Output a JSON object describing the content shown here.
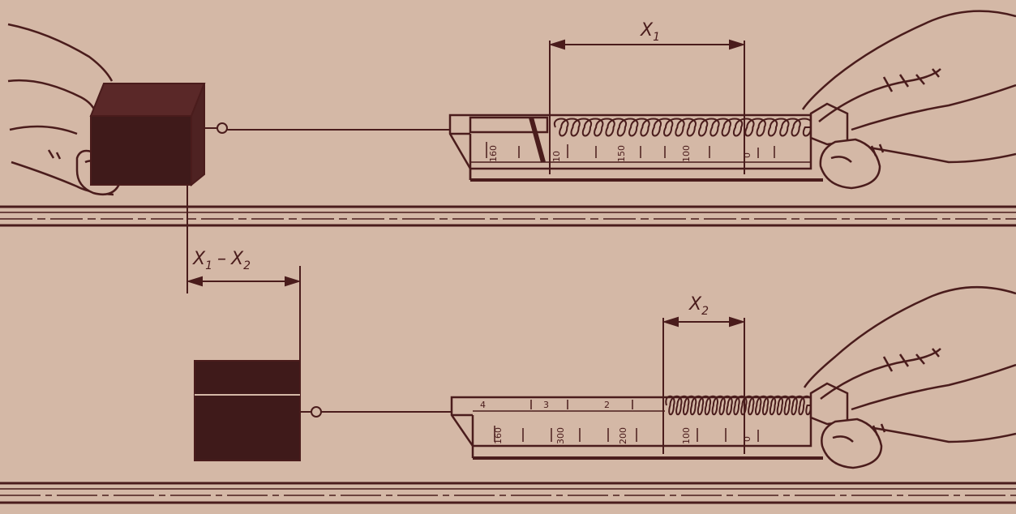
{
  "colors": {
    "background": "#d4b8a6",
    "ink": "#4a1c1c",
    "block": "#3f1a1a"
  },
  "labels": {
    "x1": "X",
    "x1_sub": "1",
    "x2": "X",
    "x2_sub": "2",
    "diff_a": "X",
    "diff_a_sub": "1",
    "diff_minus": "–",
    "diff_b": "X",
    "diff_b_sub": "2"
  },
  "top_scale": [
    "160",
    "10",
    "150",
    "100",
    "0"
  ],
  "bottom_scale": [
    "160",
    "300",
    "200",
    "100",
    "0"
  ],
  "bottom_scale_upper": [
    "4",
    "3",
    "2"
  ]
}
